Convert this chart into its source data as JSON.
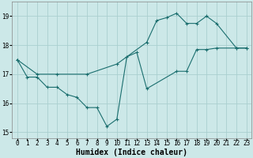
{
  "xlabel": "Humidex (Indice chaleur)",
  "bg_color": "#cce8e8",
  "grid_color": "#aacfcf",
  "line_color": "#1a6e6e",
  "line1_x": [
    0,
    1,
    2,
    3,
    4,
    5,
    6,
    7,
    8,
    9,
    10,
    11,
    12,
    13,
    16,
    17,
    18,
    19,
    20,
    22,
    23
  ],
  "line1_y": [
    17.5,
    16.9,
    16.9,
    16.55,
    16.55,
    16.3,
    16.2,
    15.85,
    15.85,
    15.2,
    15.45,
    17.6,
    17.75,
    16.5,
    17.1,
    17.1,
    17.85,
    17.85,
    17.9,
    17.9,
    17.9
  ],
  "line2_x": [
    0,
    2,
    4,
    7,
    10,
    13,
    14,
    15,
    16,
    17,
    18,
    19,
    20,
    22,
    23
  ],
  "line2_y": [
    17.5,
    17.0,
    17.0,
    17.0,
    17.35,
    18.1,
    18.85,
    18.95,
    19.1,
    18.75,
    18.75,
    19.0,
    18.75,
    17.9,
    17.9
  ],
  "xlim": [
    -0.5,
    23.5
  ],
  "ylim": [
    14.8,
    19.5
  ],
  "yticks": [
    15,
    16,
    17,
    18,
    19
  ],
  "xticks": [
    0,
    1,
    2,
    3,
    4,
    5,
    6,
    7,
    8,
    9,
    10,
    11,
    12,
    13,
    14,
    15,
    16,
    17,
    18,
    19,
    20,
    21,
    22,
    23
  ],
  "tick_fontsize": 5.5,
  "label_fontsize": 7
}
